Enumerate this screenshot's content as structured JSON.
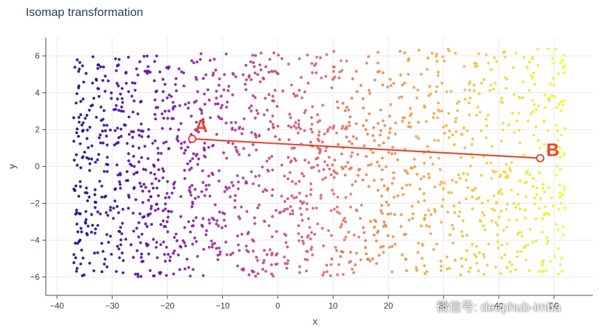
{
  "chart_data": {
    "type": "scatter",
    "title": "Isomap transformation",
    "xlabel": "x",
    "ylabel": "y",
    "xlim": [
      -42,
      57
    ],
    "ylim": [
      -7,
      7
    ],
    "x_ticks": [
      -40,
      -30,
      -20,
      -10,
      0,
      10,
      20,
      30,
      40,
      50
    ],
    "y_ticks": [
      -6,
      -4,
      -2,
      0,
      2,
      4,
      6
    ],
    "x_tick_labels": [
      "−40",
      "−30",
      "−20",
      "−10",
      "0",
      "10",
      "20",
      "30",
      "40",
      "50"
    ],
    "y_tick_labels": [
      "−6",
      "−4",
      "−2",
      "0",
      "2",
      "4",
      "6"
    ],
    "grid": true,
    "colorscale": [
      "#1a0b8a",
      "#5a0ba6",
      "#9d2aa0",
      "#cc4f7d",
      "#e67a52",
      "#f3a33d",
      "#f5d040",
      "#f0f921"
    ],
    "point_cloud": {
      "x_range": [
        -37,
        52
      ],
      "y_range": [
        -6,
        6.2
      ],
      "approx_point_count": 1700,
      "color_by": "x"
    },
    "annotations": [
      {
        "label": "A",
        "x": -15.5,
        "y": 1.5,
        "color": "#e8452e"
      },
      {
        "label": "B",
        "x": 47.5,
        "y": 0.45,
        "color": "#e8452e"
      }
    ],
    "connector": {
      "from": "A",
      "to": "B",
      "color": "#e8452e"
    }
  },
  "watermark": {
    "text": "微信号: deephub-imba"
  }
}
